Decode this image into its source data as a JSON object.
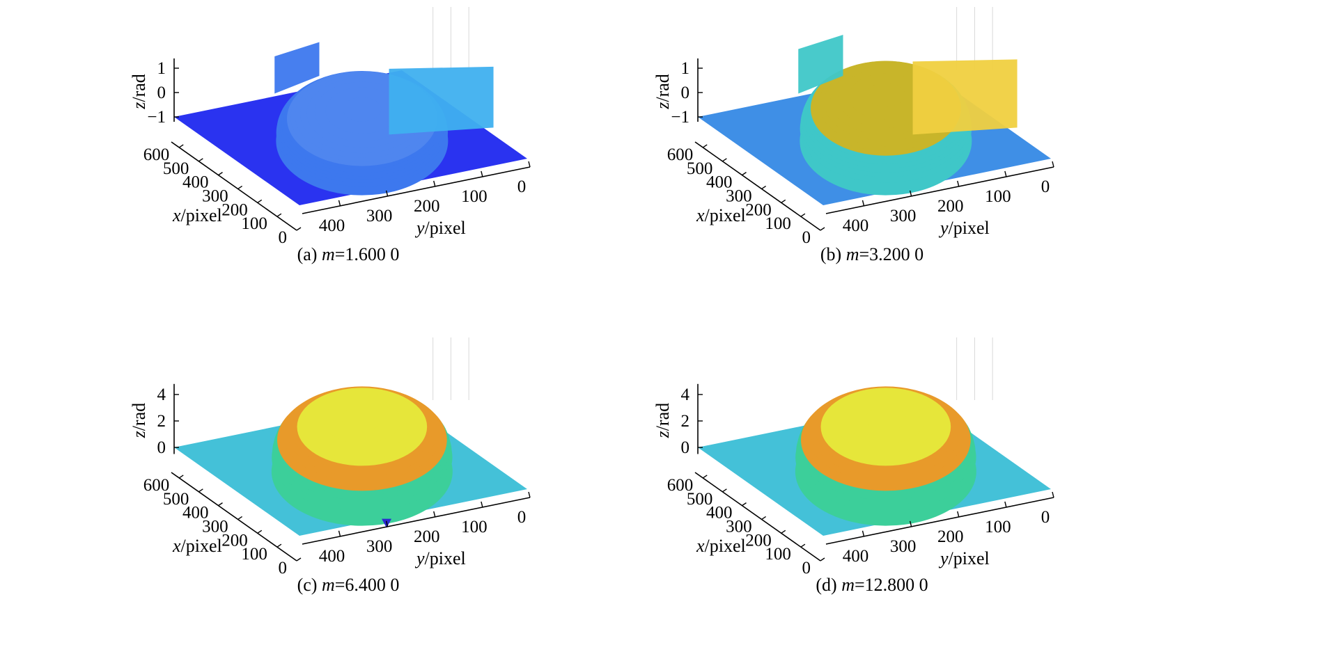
{
  "chart_data": [
    {
      "id": "a",
      "type": "surface3d",
      "caption_prefix": "(a) ",
      "caption_var": "m",
      "caption_value": "=1.600 0",
      "xlabel_var": "x",
      "xlabel_unit": "/pixel",
      "ylabel_var": "y",
      "ylabel_unit": "/pixel",
      "zlabel_var": "z",
      "zlabel_unit": "/rad",
      "x_ticks": [
        "0",
        "100",
        "200",
        "300",
        "400",
        "500",
        "600"
      ],
      "y_ticks": [
        "0",
        "100",
        "200",
        "300",
        "400"
      ],
      "z_ticks": [
        "−1",
        "0",
        "1"
      ],
      "xlim": [
        0,
        640
      ],
      "ylim": [
        0,
        480
      ],
      "zlim": [
        -1.2,
        1.4
      ],
      "base_z": -1.0,
      "dome_peak_z": 0.3,
      "has_wall_artifacts": true,
      "colors": {
        "base": "#2a33f0",
        "dome_low": "#3d78ee",
        "dome_top": "#4f86ef",
        "wall": "#3fb0ef"
      }
    },
    {
      "id": "b",
      "type": "surface3d",
      "caption_prefix": "(b) ",
      "caption_var": "m",
      "caption_value": "=3.200 0",
      "xlabel_var": "x",
      "xlabel_unit": "/pixel",
      "ylabel_var": "y",
      "ylabel_unit": "/pixel",
      "zlabel_var": "z",
      "zlabel_unit": "/rad",
      "x_ticks": [
        "0",
        "100",
        "200",
        "300",
        "400",
        "500",
        "600"
      ],
      "y_ticks": [
        "0",
        "100",
        "200",
        "300",
        "400"
      ],
      "z_ticks": [
        "−1",
        "0",
        "1"
      ],
      "xlim": [
        0,
        640
      ],
      "ylim": [
        0,
        480
      ],
      "zlim": [
        -1.2,
        1.4
      ],
      "base_z": -1.0,
      "dome_peak_z": 0.9,
      "has_wall_artifacts": true,
      "colors": {
        "base": "#3f8fe6",
        "dome_low": "#3fc7c8",
        "dome_top": "#c8b52a",
        "wall": "#f0d040"
      }
    },
    {
      "id": "c",
      "type": "surface3d",
      "caption_prefix": "(c) ",
      "caption_var": "m",
      "caption_value": "=6.400 0",
      "xlabel_var": "x",
      "xlabel_unit": "/pixel",
      "ylabel_var": "y",
      "ylabel_unit": "/pixel",
      "zlabel_var": "z",
      "zlabel_unit": "/rad",
      "x_ticks": [
        "0",
        "100",
        "200",
        "300",
        "400",
        "500",
        "600"
      ],
      "y_ticks": [
        "0",
        "100",
        "200",
        "300",
        "400"
      ],
      "z_ticks": [
        "0",
        "2",
        "4"
      ],
      "xlim": [
        0,
        640
      ],
      "ylim": [
        0,
        480
      ],
      "zlim": [
        -0.5,
        4.8
      ],
      "base_z": 0.0,
      "dome_peak_z": 4.0,
      "has_wall_artifacts": false,
      "has_spike": true,
      "colors": {
        "base": "#44c1d8",
        "dome_low": "#3ccf9a",
        "dome_mid": "#e89a2a",
        "dome_top": "#e6e63a",
        "spike": "#2a2ad0"
      }
    },
    {
      "id": "d",
      "type": "surface3d",
      "caption_prefix": "(d) ",
      "caption_var": "m",
      "caption_value": "=12.800 0",
      "xlabel_var": "x",
      "xlabel_unit": "/pixel",
      "ylabel_var": "y",
      "ylabel_unit": "/pixel",
      "zlabel_var": "z",
      "zlabel_unit": "/rad",
      "x_ticks": [
        "0",
        "100",
        "200",
        "300",
        "400",
        "500",
        "600"
      ],
      "y_ticks": [
        "0",
        "100",
        "200",
        "300",
        "400"
      ],
      "z_ticks": [
        "0",
        "2",
        "4"
      ],
      "xlim": [
        0,
        640
      ],
      "ylim": [
        0,
        480
      ],
      "zlim": [
        -0.5,
        4.8
      ],
      "base_z": 0.0,
      "dome_peak_z": 4.0,
      "has_wall_artifacts": false,
      "has_spike": false,
      "colors": {
        "base": "#44c1d8",
        "dome_low": "#3ccf9a",
        "dome_mid": "#e89a2a",
        "dome_top": "#e6e63a"
      }
    }
  ]
}
